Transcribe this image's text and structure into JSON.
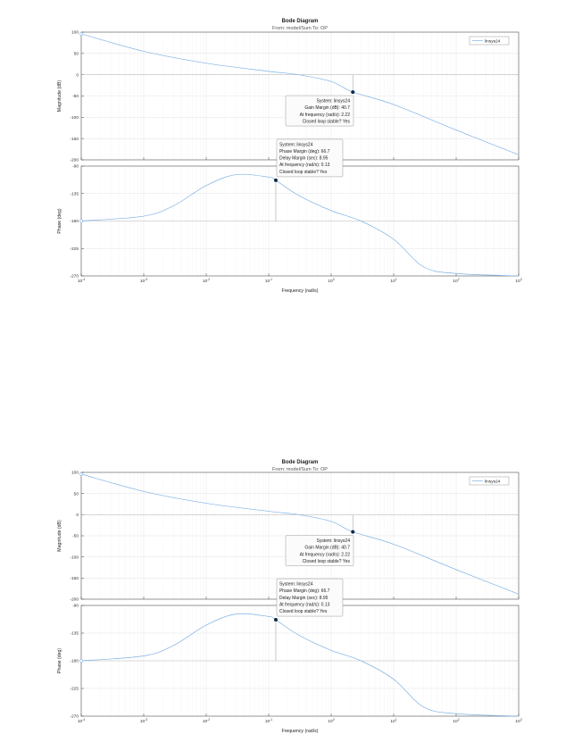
{
  "chart_data": [
    {
      "type": "line",
      "title": "Bode Diagram",
      "subtitle": "From: model/Sum  To: OP",
      "xlabel": "Frequency  (rad/s)",
      "x_scale": "log",
      "xlim": [
        0.0001,
        1000
      ],
      "x_ticks": [
        {
          "base": "10",
          "exp": "-4"
        },
        {
          "base": "10",
          "exp": "-3"
        },
        {
          "base": "10",
          "exp": "-2"
        },
        {
          "base": "10",
          "exp": "-1"
        },
        {
          "base": "10",
          "exp": "0"
        },
        {
          "base": "10",
          "exp": "1"
        },
        {
          "base": "10",
          "exp": "2"
        },
        {
          "base": "10",
          "exp": "3"
        }
      ],
      "grid": true,
      "legend": {
        "entries": [
          "linsys24"
        ],
        "placement": "top-right"
      },
      "magnitude": {
        "ylabel": "Magnitude (dB)",
        "ylim": [
          -200,
          100
        ],
        "y_ticks": [
          "100",
          "50",
          "0",
          "-50",
          "-100",
          "-150",
          "-200"
        ],
        "series": [
          {
            "name": "linsys24",
            "x": [
              0.0001,
              0.001,
              0.01,
              0.1,
              0.3,
              1,
              2.22,
              10,
              100,
              1000
            ],
            "y": [
              96,
              55,
              27,
              8,
              0,
              -16,
              -40.7,
              -70,
              -130,
              -188
            ]
          }
        ]
      },
      "phase": {
        "ylabel": "Phase (deg)",
        "ylim": [
          -270,
          -90
        ],
        "y_ticks": [
          "-90",
          "-135",
          "-180",
          "-225",
          "-270"
        ],
        "series": [
          {
            "name": "linsys24",
            "x": [
              0.0001,
              0.001,
              0.003,
              0.01,
              0.03,
              0.1,
              0.13,
              0.3,
              1,
              3,
              10,
              30,
              100,
              1000
            ],
            "y": [
              -180,
              -172,
              -155,
              -122,
              -104,
              -108,
              -113.3,
              -138,
              -163,
              -180,
              -210,
              -255,
              -266,
              -270
            ]
          }
        ]
      },
      "annotations": {
        "gain_margin": {
          "x": 2.22,
          "y": -40.7,
          "lines": [
            "System: linsys24",
            "Gain Margin (dB): 40.7",
            "At frequency (rad/s): 2.22",
            "Closed loop stable? Yes"
          ]
        },
        "phase_margin": {
          "x": 0.13,
          "y": -113.3,
          "lines": [
            "System: linsys24",
            "Phase Margin (deg): 66.7",
            "Delay Margin (sec): 8.95",
            "At frequency (rad/s): 0.13",
            "Closed loop stable? Yes"
          ]
        }
      },
      "colors": {
        "line": "#7fb2e5",
        "marker": "#0b2a4a",
        "grid": "#e6e6e6",
        "ref_line": "#a8a8a8"
      }
    },
    {
      "type": "line",
      "title": "Bode Diagram",
      "subtitle": "From: model/Sum  To: OP",
      "xlabel": "Frequency  (rad/s)",
      "x_scale": "log",
      "xlim": [
        0.0001,
        1000
      ],
      "x_ticks": [
        {
          "base": "10",
          "exp": "-4"
        },
        {
          "base": "10",
          "exp": "-3"
        },
        {
          "base": "10",
          "exp": "-2"
        },
        {
          "base": "10",
          "exp": "-1"
        },
        {
          "base": "10",
          "exp": "0"
        },
        {
          "base": "10",
          "exp": "1"
        },
        {
          "base": "10",
          "exp": "2"
        },
        {
          "base": "10",
          "exp": "3"
        }
      ],
      "grid": true,
      "legend": {
        "entries": [
          "linsys24"
        ],
        "placement": "top-right"
      },
      "magnitude": {
        "ylabel": "Magnitude (dB)",
        "ylim": [
          -200,
          100
        ],
        "y_ticks": [
          "100",
          "50",
          "0",
          "-50",
          "-100",
          "-150",
          "-200"
        ],
        "series": [
          {
            "name": "linsys24",
            "x": [
              0.0001,
              0.001,
              0.01,
              0.1,
              0.3,
              1,
              2.22,
              10,
              100,
              1000
            ],
            "y": [
              96,
              55,
              27,
              8,
              0,
              -16,
              -40.7,
              -70,
              -130,
              -188
            ]
          }
        ]
      },
      "phase": {
        "ylabel": "Phase (deg)",
        "ylim": [
          -270,
          -90
        ],
        "y_ticks": [
          "-90",
          "-135",
          "-180",
          "-225",
          "-270"
        ],
        "series": [
          {
            "name": "linsys24",
            "x": [
              0.0001,
              0.001,
              0.003,
              0.01,
              0.03,
              0.1,
              0.13,
              0.3,
              1,
              3,
              10,
              30,
              100,
              1000
            ],
            "y": [
              -180,
              -172,
              -155,
              -122,
              -104,
              -108,
              -113.3,
              -138,
              -163,
              -180,
              -210,
              -255,
              -266,
              -270
            ]
          }
        ]
      },
      "annotations": {
        "gain_margin": {
          "x": 2.22,
          "y": -40.7,
          "lines": [
            "System: linsys24",
            "Gain Margin (dB): 40.7",
            "At frequency (rad/s): 2.22",
            "Closed loop stable? Yes"
          ]
        },
        "phase_margin": {
          "x": 0.13,
          "y": -113.3,
          "lines": [
            "System: linsys24",
            "Phase Margin (deg): 66.7",
            "Delay Margin (sec): 8.95",
            "At frequency (rad/s): 0.13",
            "Closed loop stable? Yes"
          ]
        }
      },
      "colors": {
        "line": "#7fb2e5",
        "marker": "#0b2a4a",
        "grid": "#e6e6e6",
        "ref_line": "#a8a8a8"
      }
    }
  ]
}
